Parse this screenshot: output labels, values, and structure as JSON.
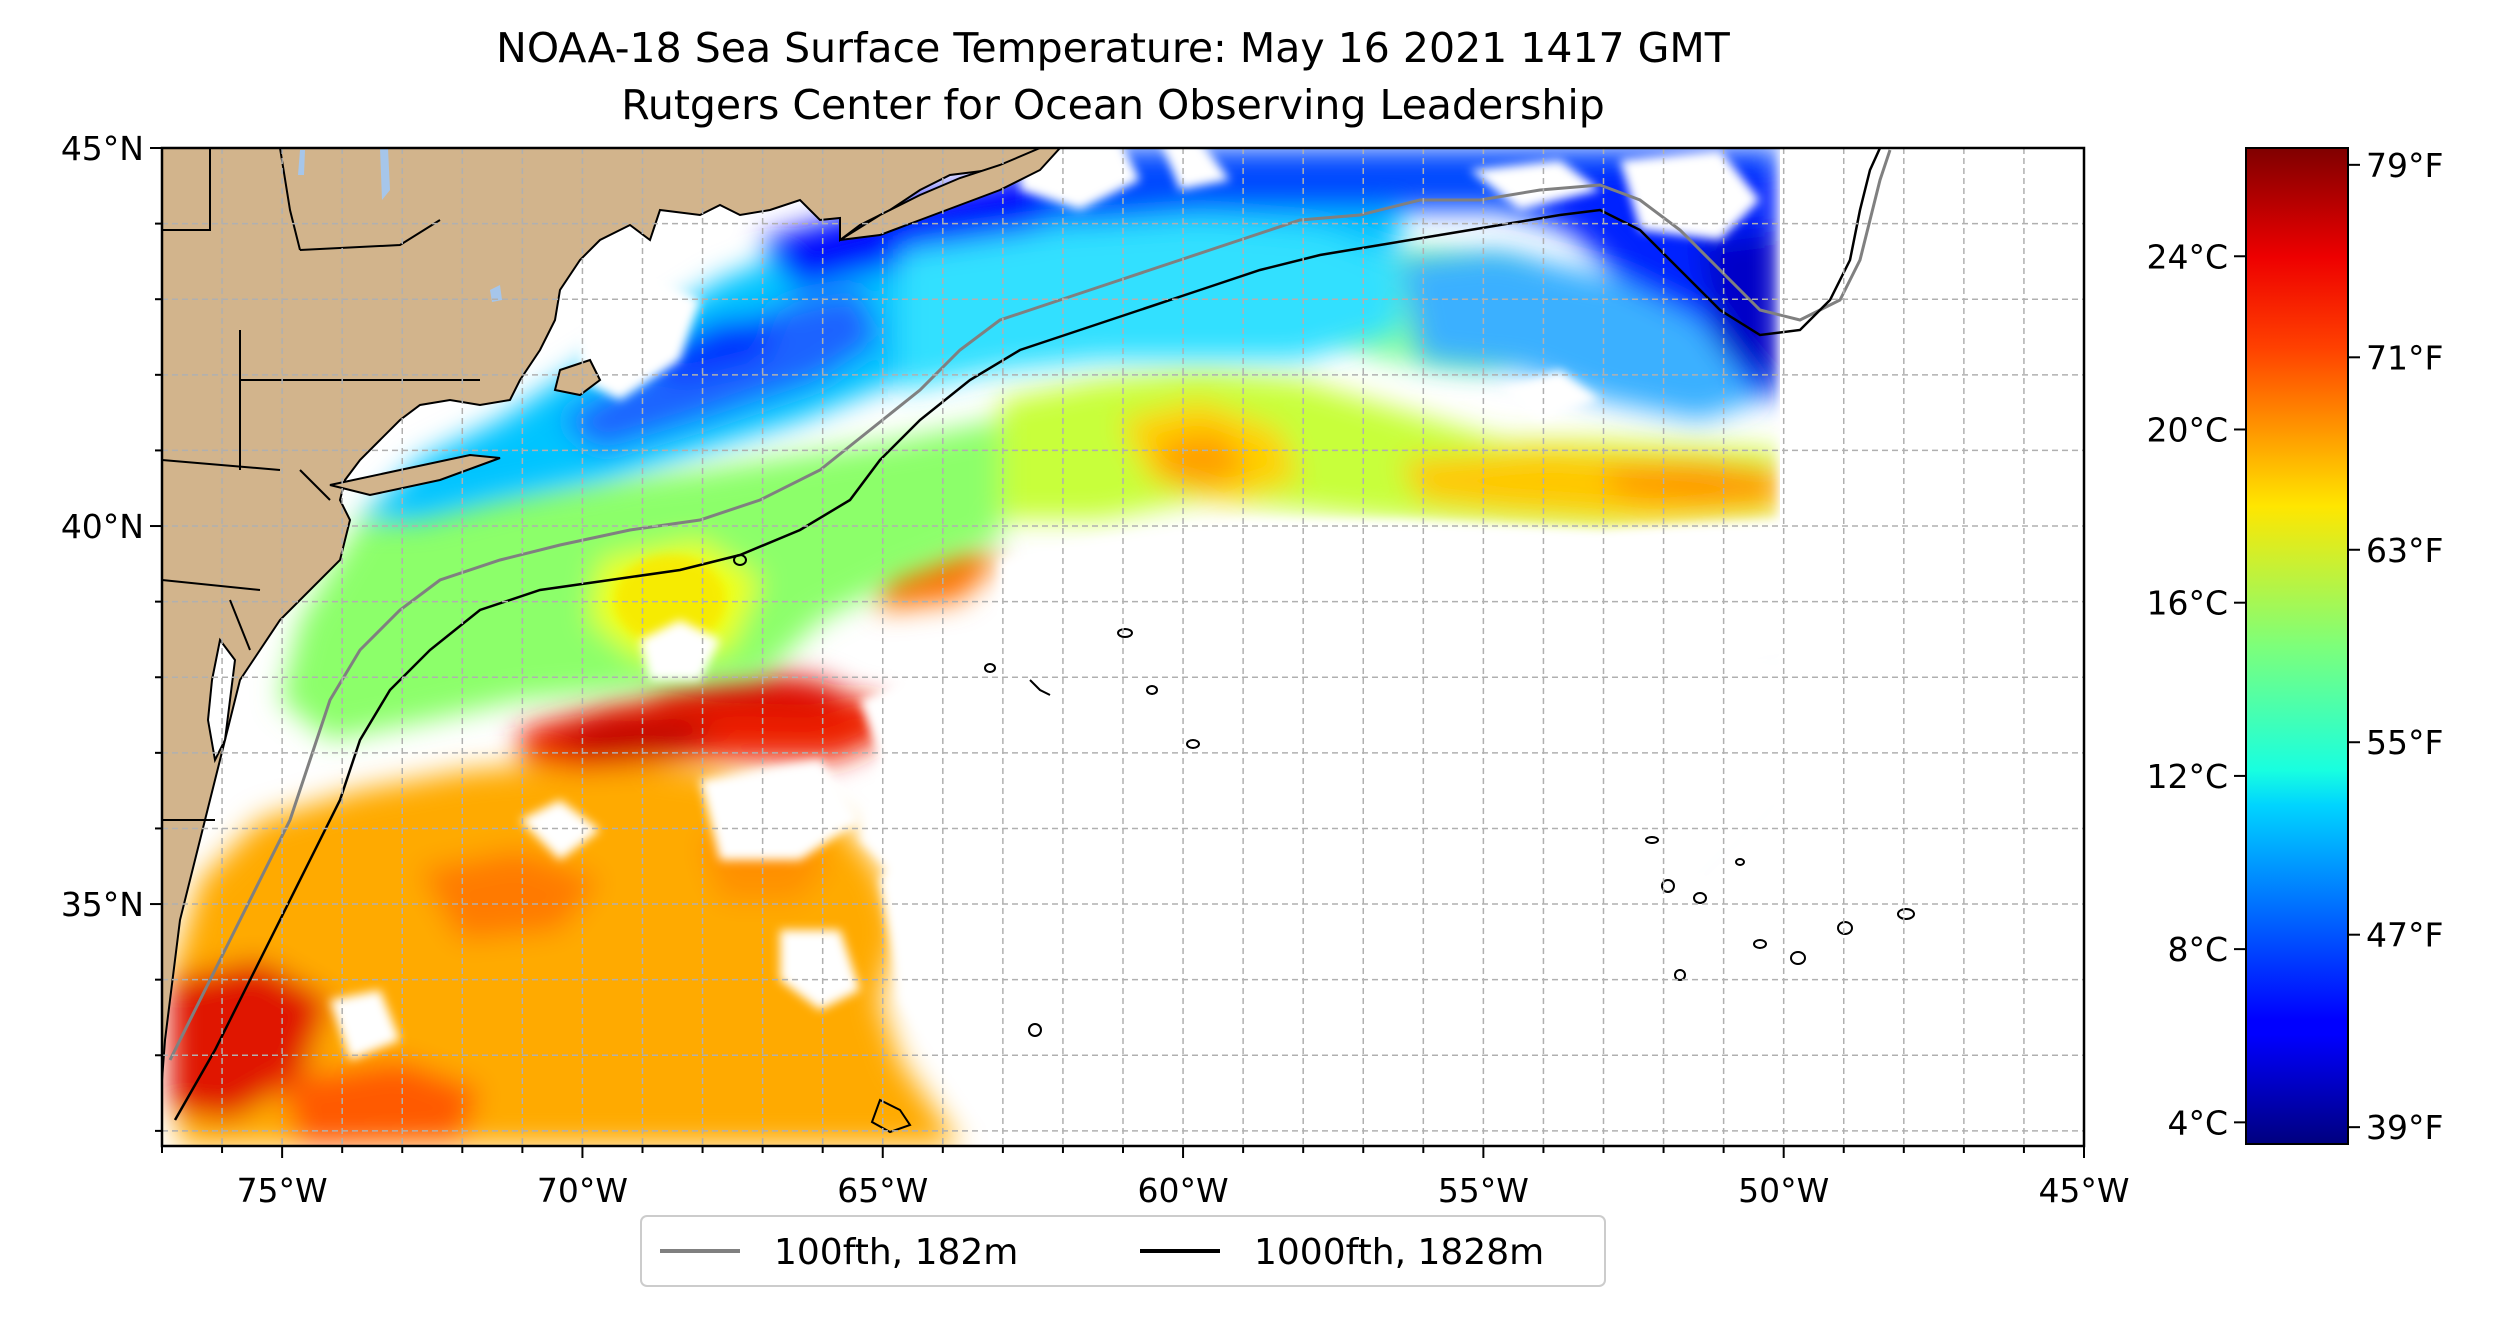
{
  "title": {
    "line1": "NOAA-18 Sea Surface Temperature: May 16 2021 1417 GMT",
    "line2": "Rutgers Center for Ocean Observing Leadership"
  },
  "map": {
    "lon_range": [
      -77,
      -45
    ],
    "lat_range": [
      31.8,
      45
    ],
    "lat_ticks": [
      {
        "value": 45,
        "label": "45°N"
      },
      {
        "value": 40,
        "label": "40°N"
      },
      {
        "value": 35,
        "label": "35°N"
      }
    ],
    "lon_ticks": [
      {
        "value": -75,
        "label": "75°W"
      },
      {
        "value": -70,
        "label": "70°W"
      },
      {
        "value": -65,
        "label": "65°W"
      },
      {
        "value": -60,
        "label": "60°W"
      },
      {
        "value": -55,
        "label": "55°W"
      },
      {
        "value": -50,
        "label": "50°W"
      },
      {
        "value": -45,
        "label": "45°W"
      }
    ],
    "gridlines": "dashed, every 1 degree",
    "land_color": "#d2b48c",
    "no_data_color": "#ffffff"
  },
  "colorbar": {
    "colormap": "jet",
    "range_c": [
      3.5,
      26.5
    ],
    "celsius_ticks": [
      {
        "value": 24,
        "label": "24°C"
      },
      {
        "value": 20,
        "label": "20°C"
      },
      {
        "value": 16,
        "label": "16°C"
      },
      {
        "value": 12,
        "label": "12°C"
      },
      {
        "value": 8,
        "label": "8°C"
      },
      {
        "value": 4,
        "label": "4°C"
      }
    ],
    "fahrenheit_ticks": [
      {
        "value": 79,
        "label": "79°F"
      },
      {
        "value": 71,
        "label": "71°F"
      },
      {
        "value": 63,
        "label": "63°F"
      },
      {
        "value": 55,
        "label": "55°F"
      },
      {
        "value": 47,
        "label": "47°F"
      },
      {
        "value": 39,
        "label": "39°F"
      }
    ]
  },
  "legend": {
    "items": [
      {
        "label": "100fth, 182m",
        "color": "#808080"
      },
      {
        "label": "1000fth, 1828m",
        "color": "#000000"
      }
    ]
  }
}
